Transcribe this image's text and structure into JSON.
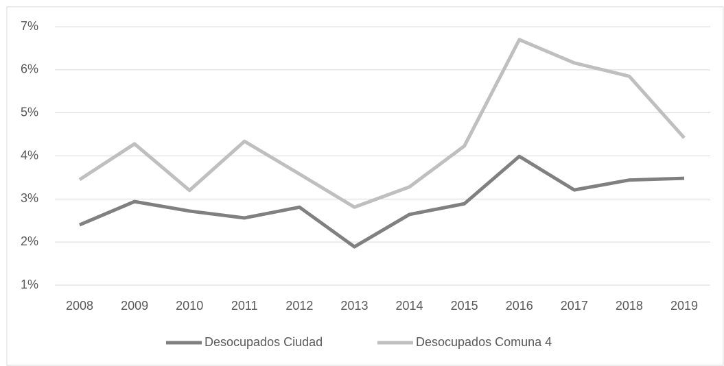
{
  "chart_data": {
    "type": "line",
    "categories": [
      "2008",
      "2009",
      "2010",
      "2011",
      "2012",
      "2013",
      "2014",
      "2015",
      "2016",
      "2017",
      "2018",
      "2019"
    ],
    "series": [
      {
        "name": "Desocupados Ciudad",
        "color": "#808080",
        "values": [
          2.4,
          2.94,
          2.72,
          2.56,
          2.81,
          1.89,
          2.64,
          2.89,
          3.99,
          3.21,
          3.44,
          3.48
        ]
      },
      {
        "name": "Desocupados Comuna 4",
        "color": "#bfbfbf",
        "values": [
          3.45,
          4.28,
          3.2,
          4.34,
          3.58,
          2.81,
          3.28,
          4.23,
          6.7,
          6.16,
          5.85,
          4.42
        ]
      }
    ],
    "ylim": [
      1,
      7
    ],
    "yticks": [
      {
        "value": 1,
        "label": "1%"
      },
      {
        "value": 2,
        "label": "2%"
      },
      {
        "value": 3,
        "label": "3%"
      },
      {
        "value": 4,
        "label": "4%"
      },
      {
        "value": 5,
        "label": "5%"
      },
      {
        "value": 6,
        "label": "6%"
      },
      {
        "value": 7,
        "label": "7%"
      }
    ],
    "grid": true,
    "legend": "bottom"
  }
}
